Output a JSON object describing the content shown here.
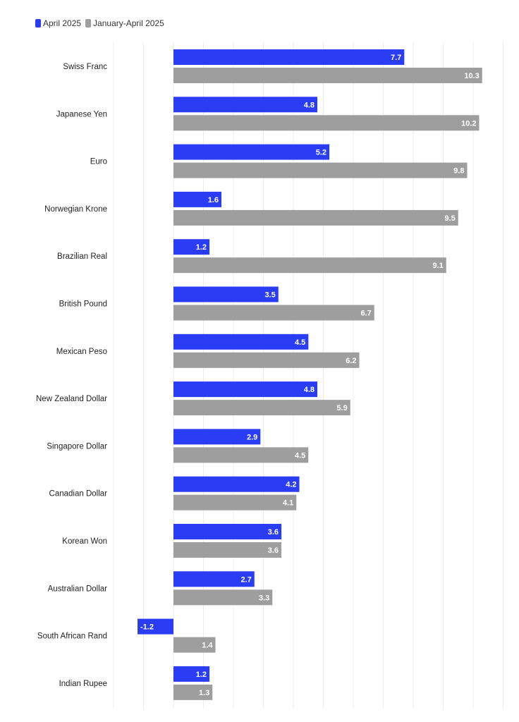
{
  "chart_data": {
    "type": "bar",
    "orientation": "horizontal",
    "categories": [
      "Swiss Franc",
      "Japanese Yen",
      "Euro",
      "Norwegian Krone",
      "Brazilian Real",
      "British Pound",
      "Mexican Peso",
      "New Zealand Dollar",
      "Singapore Dollar",
      "Canadian Dollar",
      "Korean Won",
      "Australian Dollar",
      "South African Rand",
      "Indian Rupee"
    ],
    "series": [
      {
        "name": "April 2025",
        "color": "#2b3cf5",
        "values": [
          7.7,
          4.8,
          5.2,
          1.6,
          1.2,
          3.5,
          4.5,
          4.8,
          2.9,
          4.2,
          3.6,
          2.7,
          -1.2,
          1.2
        ]
      },
      {
        "name": "January-April 2025",
        "color": "#9e9e9e",
        "values": [
          10.3,
          10.2,
          9.8,
          9.5,
          9.1,
          6.7,
          6.2,
          5.9,
          4.5,
          4.1,
          3.6,
          3.3,
          1.4,
          1.3
        ]
      }
    ],
    "value_labels": {
      "April 2025": [
        "7.7",
        "4.8",
        "5.2",
        "1.6",
        "1.2",
        "3.5",
        "4.5",
        "4.8",
        "2.9",
        "4.2",
        "3.6",
        "2.7",
        "-1.2",
        "1.2"
      ],
      "January-April 2025": [
        "10.3",
        "10.2",
        "9.8",
        "9.5",
        "9.1",
        "6.7",
        "6.2",
        "5.9",
        "4.5",
        "4.1",
        "3.6",
        "3.3",
        "1.4",
        "1.3"
      ]
    },
    "xlim": [
      -2,
      11
    ],
    "grid": true,
    "legend": "top-left",
    "title": "",
    "xlabel": "",
    "ylabel": ""
  }
}
